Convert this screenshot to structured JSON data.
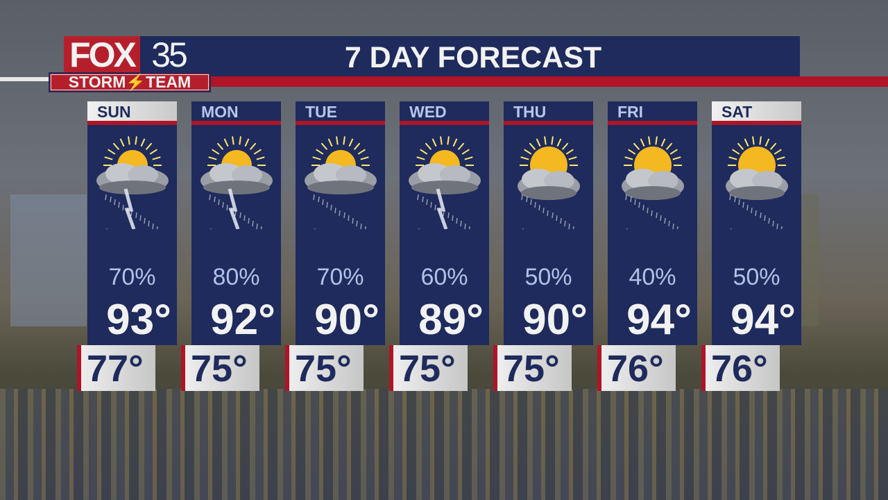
{
  "header": {
    "title": "7 DAY FORECAST",
    "logo": {
      "fox": "FOX",
      "number": "35",
      "tagline": "STORM⚡TEAM"
    }
  },
  "colors": {
    "navy": "#1e2b5c",
    "red": "#b01426",
    "popText": "#b0c2e8"
  },
  "days": [
    {
      "day": "SUN",
      "weekend": true,
      "icon": "sun-cloud-thunderstorm-icon",
      "pop": "70%",
      "high": "93°",
      "low": "77°"
    },
    {
      "day": "MON",
      "weekend": false,
      "icon": "sun-cloud-thunderstorm-icon",
      "pop": "80%",
      "high": "92°",
      "low": "75°"
    },
    {
      "day": "TUE",
      "weekend": false,
      "icon": "sun-cloud-rain-icon",
      "pop": "70%",
      "high": "90°",
      "low": "75°"
    },
    {
      "day": "WED",
      "weekend": false,
      "icon": "sun-cloud-thunderstorm-icon",
      "pop": "60%",
      "high": "89°",
      "low": "75°"
    },
    {
      "day": "THU",
      "weekend": false,
      "icon": "sun-cloud-showers-icon",
      "pop": "50%",
      "high": "90°",
      "low": "75°"
    },
    {
      "day": "FRI",
      "weekend": false,
      "icon": "sun-cloud-showers-icon",
      "pop": "40%",
      "high": "94°",
      "low": "76°"
    },
    {
      "day": "SAT",
      "weekend": true,
      "icon": "sun-cloud-showers-icon",
      "pop": "50%",
      "high": "94°",
      "low": "76°"
    }
  ]
}
